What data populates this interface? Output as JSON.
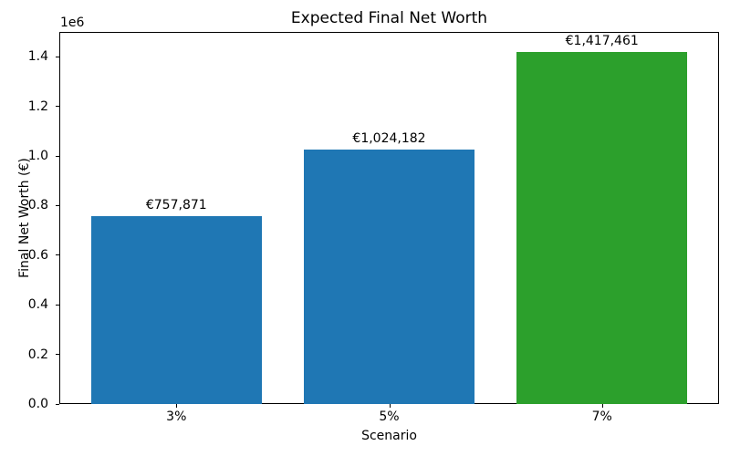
{
  "chart_data": {
    "type": "bar",
    "title": "Expected Final Net Worth",
    "xlabel": "Scenario",
    "ylabel": "Final Net Worth (€)",
    "categories": [
      "3%",
      "5%",
      "7%"
    ],
    "values": [
      757871,
      1024182,
      1417461
    ],
    "bar_labels": [
      "€757,871",
      "€1,024,182",
      "€1,417,461"
    ],
    "bar_colors": [
      "#1f77b4",
      "#1f77b4",
      "#2ca02c"
    ],
    "ylim": [
      0,
      1500000
    ],
    "y_scale": 1000000,
    "y_offset_label": "1e6",
    "ytick_labels": [
      "0.0",
      "0.2",
      "0.4",
      "0.6",
      "0.8",
      "1.0",
      "1.2",
      "1.4"
    ],
    "grid": false,
    "legend": "none",
    "axis_color": "#000000",
    "background_color": "#ffffff"
  }
}
